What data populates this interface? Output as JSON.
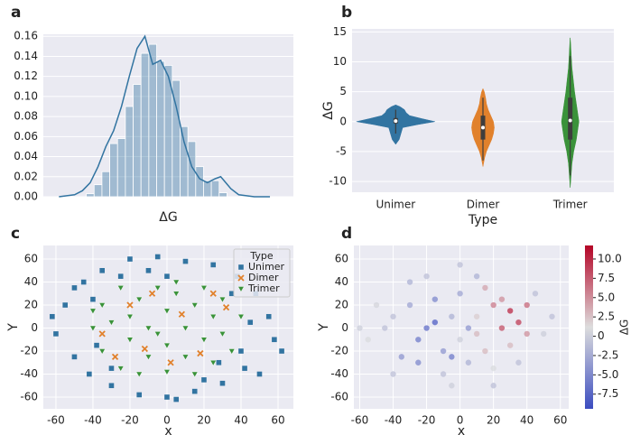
{
  "chart_data": [
    {
      "type": "histogram",
      "panel_label": "a",
      "xlabel": "ΔG",
      "color": "#3274a1",
      "bins": [
        -9.5,
        -8.5,
        -7.5,
        -6.5,
        -5.5,
        -4.5,
        -3.5,
        -2.5,
        -1.5,
        -0.5,
        0.5,
        1.5,
        2.5,
        3.5,
        4.5,
        5.5,
        6.5,
        7.5,
        8.5
      ],
      "values": [
        0.003,
        0.012,
        0.025,
        0.053,
        0.058,
        0.09,
        0.112,
        0.143,
        0.152,
        0.135,
        0.131,
        0.116,
        0.07,
        0.055,
        0.03,
        0.016,
        0.016,
        0.004
      ],
      "kde": {
        "x": [
          -13,
          -11,
          -10,
          -9,
          -8,
          -7,
          -6,
          -5,
          -4,
          -3,
          -2,
          -1,
          0,
          1,
          2,
          3,
          4,
          5,
          6,
          7,
          7.7,
          9,
          10,
          12,
          14
        ],
        "y": [
          0,
          0.002,
          0.006,
          0.014,
          0.03,
          0.05,
          0.066,
          0.09,
          0.12,
          0.148,
          0.16,
          0.132,
          0.136,
          0.12,
          0.09,
          0.055,
          0.03,
          0.018,
          0.014,
          0.018,
          0.02,
          0.008,
          0.002,
          0,
          0
        ]
      },
      "xlim": [
        -15,
        17
      ],
      "ylim": [
        0,
        0.162
      ],
      "yticks": [
        {
          "value": 0,
          "label": "0.00"
        },
        {
          "value": 0.02,
          "label": "0.02"
        },
        {
          "value": 0.04,
          "label": "0.04"
        },
        {
          "value": 0.06,
          "label": "0.06"
        },
        {
          "value": 0.08,
          "label": "0.08"
        },
        {
          "value": 0.1,
          "label": "0.10"
        },
        {
          "value": 0.12,
          "label": "0.12"
        },
        {
          "value": 0.14,
          "label": "0.14"
        },
        {
          "value": 0.16,
          "label": "0.16"
        }
      ],
      "grid": true
    },
    {
      "type": "violin",
      "panel_label": "b",
      "xlabel": "Type",
      "ylabel": "ΔG",
      "categories": [
        "Unimer",
        "Dimer",
        "Trimer"
      ],
      "colors": [
        "#3274a1",
        "#e1812c",
        "#3a923a"
      ],
      "density": [
        {
          "y": [
            -3.8,
            -3,
            -2,
            -1,
            -0.5,
            0,
            0.5,
            1,
            1.5,
            2,
            2.5,
            2.8
          ],
          "w": [
            0,
            0.04,
            0.06,
            0.08,
            0.25,
            0.45,
            0.3,
            0.16,
            0.12,
            0.1,
            0.05,
            0
          ]
        },
        {
          "y": [
            -7.5,
            -6,
            -5,
            -4,
            -3,
            -2,
            -1,
            0,
            1,
            2,
            3,
            4,
            5,
            5.5
          ],
          "w": [
            0,
            0.02,
            0.04,
            0.07,
            0.1,
            0.12,
            0.13,
            0.12,
            0.09,
            0.06,
            0.04,
            0.03,
            0.015,
            0
          ]
        },
        {
          "y": [
            -11,
            -9,
            -7,
            -5,
            -3,
            -1,
            0,
            1,
            3,
            5,
            7,
            9,
            11,
            13,
            14
          ],
          "w": [
            0,
            0.01,
            0.02,
            0.04,
            0.07,
            0.09,
            0.1,
            0.09,
            0.07,
            0.05,
            0.035,
            0.02,
            0.012,
            0.005,
            0
          ]
        }
      ],
      "quartiles": [
        [
          -0.3,
          0.1,
          0.6
        ],
        [
          -3,
          -1,
          1
        ],
        [
          -3,
          0.2,
          4
        ]
      ],
      "whiskers": [
        [
          -2,
          2
        ],
        [
          -6.5,
          4
        ],
        [
          -9,
          11
        ]
      ],
      "ylim": [
        -11.8,
        15.5
      ],
      "yticks": [
        -10,
        -5,
        0,
        5,
        10,
        15
      ],
      "grid": true
    },
    {
      "type": "scatter",
      "panel_label": "c",
      "xlabel": "x",
      "ylabel": "Y",
      "legend_title": "Type",
      "legend": "upper right",
      "series": [
        {
          "name": "Unimer",
          "color": "#3274a1",
          "marker": "square",
          "x": [
            -60,
            -55,
            -50,
            -45,
            -42,
            -35,
            -30,
            -20,
            -15,
            -5,
            0,
            10,
            15,
            25,
            30,
            38,
            42,
            48,
            55,
            58,
            62,
            -62,
            -40,
            40,
            -25,
            20,
            50,
            -50,
            5,
            -10,
            35,
            -38,
            45,
            -30,
            28,
            0
          ],
          "y": [
            -5,
            20,
            -25,
            40,
            -40,
            50,
            -50,
            60,
            -58,
            62,
            -60,
            58,
            -55,
            55,
            -48,
            45,
            -35,
            30,
            10,
            -10,
            -20,
            10,
            25,
            -20,
            45,
            -45,
            -40,
            35,
            -62,
            50,
            30,
            -15,
            5,
            -35,
            -30,
            45
          ]
        },
        {
          "name": "Dimer",
          "color": "#e1812c",
          "marker": "x",
          "x": [
            -20,
            -12,
            18,
            32,
            -35,
            8,
            -28,
            25,
            2,
            -8
          ],
          "y": [
            20,
            -18,
            -22,
            18,
            -5,
            12,
            -25,
            30,
            -30,
            30
          ]
        },
        {
          "name": "Trimer",
          "color": "#3a923a",
          "marker": "triangle",
          "x": [
            -40,
            -35,
            -35,
            -25,
            -25,
            -20,
            -20,
            -15,
            -10,
            -10,
            -5,
            0,
            0,
            0,
            5,
            10,
            10,
            15,
            20,
            20,
            25,
            25,
            30,
            30,
            35,
            40,
            -30,
            -5,
            15,
            -15,
            -40,
            5
          ],
          "y": [
            0,
            20,
            -20,
            35,
            -35,
            10,
            -10,
            25,
            -25,
            0,
            35,
            15,
            -15,
            -38,
            30,
            0,
            -25,
            20,
            -10,
            35,
            10,
            -30,
            25,
            -5,
            -20,
            10,
            5,
            -5,
            -40,
            -40,
            15,
            40
          ]
        }
      ],
      "xlim": [
        -66.8,
        68.3
      ],
      "ylim": [
        -70.2,
        71.8
      ],
      "xticks": [
        -60,
        -40,
        -20,
        0,
        20,
        40,
        60
      ],
      "yticks": [
        -60,
        -40,
        -20,
        0,
        20,
        40,
        60
      ],
      "grid": true
    },
    {
      "type": "scatter",
      "panel_label": "d",
      "xlabel": "x",
      "ylabel": "Y",
      "colorbar_label": "ΔG",
      "x": [
        -40,
        -30,
        -25,
        -20,
        -15,
        -10,
        -5,
        0,
        0,
        5,
        10,
        15,
        20,
        25,
        30,
        35,
        40,
        30,
        20,
        -10,
        -35,
        -45,
        -50,
        -55,
        50,
        45,
        10,
        -20,
        -5,
        15,
        -15,
        -25,
        5,
        25,
        35,
        -40,
        55,
        -60,
        0,
        20,
        -30,
        10,
        40,
        -5
      ],
      "y": [
        10,
        20,
        -10,
        0,
        25,
        -20,
        10,
        30,
        -10,
        -30,
        10,
        -20,
        20,
        0,
        15,
        5,
        20,
        -15,
        -35,
        -40,
        -25,
        0,
        20,
        -10,
        -5,
        30,
        45,
        45,
        -50,
        35,
        5,
        -30,
        0,
        25,
        -30,
        -40,
        10,
        0,
        55,
        -50,
        40,
        -5,
        -5,
        -25
      ],
      "c": [
        -1,
        -3,
        -6,
        -7,
        -5,
        -4,
        -2,
        -3,
        0,
        -2,
        2,
        3,
        6,
        8,
        10,
        9,
        7,
        3,
        1,
        -1,
        -4,
        -1,
        0.5,
        1,
        0,
        -1,
        -2,
        -1,
        0,
        4,
        -8,
        -5,
        -4,
        5,
        -1,
        -1,
        -1,
        0,
        -1,
        -1,
        -2,
        3,
        5,
        -6
      ],
      "cmap": [
        "#3b4cc0",
        "#dddddd",
        "#b40426"
      ],
      "clim": [
        -9.4,
        11.75
      ],
      "cticks": [
        -7.5,
        {
          "value": -5,
          "label": "-5.0"
        },
        -2.5,
        0,
        2.5,
        {
          "value": 5,
          "label": "5.0"
        },
        7.5,
        {
          "value": 10,
          "label": "10.0"
        }
      ],
      "xlim": [
        -63.5,
        65
      ],
      "ylim": [
        -70.2,
        71.8
      ],
      "xticks": [
        -60,
        -40,
        -20,
        0,
        20,
        40,
        60
      ],
      "yticks": [
        -60,
        -40,
        -20,
        0,
        20,
        40,
        60
      ],
      "grid": true
    }
  ]
}
